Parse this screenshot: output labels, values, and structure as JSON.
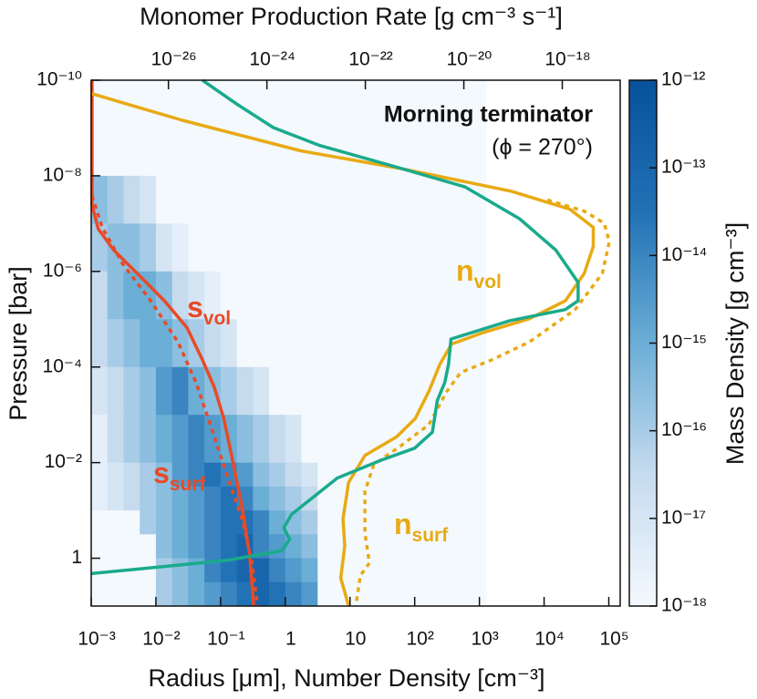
{
  "chart_data": {
    "type": "profile",
    "x_label": "Radius [μm], Number Density [cm⁻³]",
    "y_label": "Pressure [bar]",
    "x2_label": "Monomer Production Rate [g cm⁻³ s⁻¹]",
    "x2_color": "#1aaa8c",
    "annotations": [
      "Morning terminator",
      "(ϕ = 270°)"
    ],
    "xscale": "log",
    "yscale": "log",
    "x2scale": "log",
    "y_inverted": true,
    "xlim": [
      0.001,
      150000
    ],
    "ylim": [
      1e-10,
      10
    ],
    "x2lim": [
      2.7e-28,
      1.5e-17
    ],
    "xticks": [
      {
        "value": 0.001,
        "label": "10⁻³"
      },
      {
        "value": 0.01,
        "label": "10⁻²"
      },
      {
        "value": 0.1,
        "label": "10⁻¹"
      },
      1,
      10,
      {
        "value": 100,
        "label": "10²"
      },
      {
        "value": 1000,
        "label": "10³"
      },
      {
        "value": 10000,
        "label": "10⁴"
      },
      {
        "value": 100000,
        "label": "10⁵"
      }
    ],
    "yticks": [
      {
        "value": 1e-10,
        "label": "10⁻¹⁰"
      },
      {
        "value": 1e-08,
        "label": "10⁻⁸"
      },
      {
        "value": 1e-06,
        "label": "10⁻⁶"
      },
      {
        "value": 0.0001,
        "label": "10⁻⁴"
      },
      {
        "value": 0.01,
        "label": "10⁻²"
      },
      1
    ],
    "x2ticks": [
      {
        "value": 1e-26,
        "label": "10⁻²⁶"
      },
      {
        "value": 1e-24,
        "label": "10⁻²⁴"
      },
      {
        "value": 1e-22,
        "label": "10⁻²²"
      },
      {
        "value": 1e-20,
        "label": "10⁻²⁰"
      },
      {
        "value": 1e-18,
        "label": "10⁻¹⁸"
      }
    ],
    "colorbar": {
      "label": "Mass Density [g cm⁻³]",
      "lim": [
        1e-18,
        1e-12
      ],
      "ticks": [
        {
          "value": 1e-18,
          "label": "10⁻¹⁸"
        },
        {
          "value": 1e-17,
          "label": "10⁻¹⁷"
        },
        {
          "value": 1e-16,
          "label": "10⁻¹⁶"
        },
        {
          "value": 1e-15,
          "label": "10⁻¹⁵"
        },
        {
          "value": 1e-14,
          "label": "10⁻¹⁴"
        },
        {
          "value": 1e-13,
          "label": "10⁻¹³"
        },
        {
          "value": 1e-12,
          "label": "10⁻¹²"
        }
      ],
      "colors": [
        "#f4f9fe",
        "#c6dbef",
        "#6baed6",
        "#2171b5",
        "#08519c"
      ]
    },
    "heatmap": {
      "x_edges": [
        0.001,
        0.00178,
        0.00316,
        0.00562,
        0.01,
        0.0178,
        0.0316,
        0.0562,
        0.1,
        0.178,
        0.316,
        0.562,
        1,
        1.78,
        3.16,
        1260
      ],
      "y_edges": [
        1e-10,
        1e-08,
        1e-07,
        1e-06,
        1e-05,
        0.0001,
        0.001,
        0.01,
        0.0316,
        0.1,
        0.316,
        1,
        3.16,
        10
      ],
      "values": [
        [
          1e-18,
          1e-18,
          1e-18,
          1e-18,
          1e-18,
          1e-18,
          1e-18,
          1e-18,
          1e-18,
          1e-18,
          1e-18,
          1e-18,
          1e-18,
          1e-18,
          1e-18
        ],
        [
          3e-16,
          1e-16,
          3e-17,
          1e-17,
          1e-18,
          1e-18,
          1e-18,
          1e-18,
          1e-18,
          1e-18,
          1e-18,
          1e-18,
          1e-18,
          1e-18,
          1e-18
        ],
        [
          1e-16,
          3e-16,
          3e-16,
          1e-16,
          1e-17,
          3e-18,
          1e-18,
          1e-18,
          1e-18,
          1e-18,
          1e-18,
          1e-18,
          1e-18,
          1e-18,
          1e-18
        ],
        [
          3e-17,
          3e-16,
          1e-15,
          1e-15,
          3e-16,
          3e-17,
          1e-17,
          3e-18,
          1e-18,
          1e-18,
          1e-18,
          1e-18,
          1e-18,
          1e-18,
          1e-18
        ],
        [
          3e-17,
          1e-16,
          3e-16,
          1e-15,
          1e-15,
          3e-16,
          1e-16,
          3e-17,
          1e-17,
          1e-18,
          1e-18,
          1e-18,
          1e-18,
          1e-18,
          1e-18
        ],
        [
          1e-17,
          3e-17,
          1e-16,
          3e-16,
          3e-15,
          1e-14,
          1e-15,
          3e-16,
          1e-16,
          3e-17,
          1e-17,
          1e-18,
          1e-18,
          1e-18,
          1e-18
        ],
        [
          3e-18,
          3e-17,
          1e-16,
          3e-16,
          1e-15,
          3e-15,
          1e-14,
          3e-15,
          1e-15,
          3e-16,
          1e-16,
          3e-17,
          1e-17,
          1e-18,
          1e-18
        ],
        [
          3e-18,
          1e-17,
          3e-17,
          1e-16,
          3e-16,
          3e-15,
          1e-14,
          3e-14,
          1e-14,
          3e-15,
          3e-16,
          1e-16,
          3e-17,
          1e-17,
          1e-18
        ],
        [
          3e-18,
          1e-17,
          3e-17,
          1e-16,
          3e-16,
          1e-15,
          3e-15,
          1e-14,
          3e-14,
          1e-14,
          1e-15,
          3e-16,
          1e-16,
          3e-17,
          1e-18
        ],
        [
          1e-18,
          1e-18,
          1e-18,
          1e-16,
          3e-16,
          1e-15,
          3e-15,
          1e-14,
          3e-14,
          3e-14,
          1e-14,
          1e-15,
          3e-16,
          1e-16,
          1e-18
        ],
        [
          1e-18,
          1e-18,
          1e-18,
          1e-18,
          3e-16,
          1e-15,
          3e-15,
          1e-14,
          3e-14,
          1e-13,
          1e-14,
          3e-15,
          1e-15,
          3e-16,
          1e-18
        ],
        [
          1e-18,
          1e-18,
          1e-18,
          1e-18,
          1e-16,
          3e-16,
          1e-15,
          1e-14,
          3e-14,
          1e-13,
          1e-13,
          1e-14,
          3e-15,
          1e-15,
          1e-18
        ],
        [
          1e-18,
          1e-18,
          1e-18,
          1e-18,
          1e-16,
          3e-16,
          1e-15,
          3e-15,
          1e-14,
          3e-14,
          1e-13,
          3e-14,
          1e-14,
          3e-15,
          1e-18
        ]
      ]
    },
    "series": [
      {
        "name": "s",
        "sub": "vol",
        "color": "#e84a27",
        "dash": false,
        "axis": "x",
        "x": [
          0.00103,
          0.00103,
          0.00129,
          0.00224,
          0.00513,
          0.0135,
          0.0302,
          0.0525,
          0.0794,
          0.112,
          0.158,
          0.219,
          0.282,
          0.324
        ],
        "y": [
          1e-10,
          4.1e-08,
          1.3e-07,
          3.6e-07,
          1.1e-06,
          4.1e-06,
          1.5e-05,
          7.1e-05,
          0.00026,
          0.0012,
          0.011,
          0.098,
          0.87,
          9.8
        ]
      },
      {
        "name": "s",
        "sub": "surf",
        "color": "#e84a27",
        "dash": true,
        "axis": "x",
        "x": [
          0.00103,
          0.00148,
          0.00309,
          0.0083,
          0.0219,
          0.0417,
          0.0724,
          0.123,
          0.214,
          0.302,
          0.372
        ],
        "y": [
          2.6e-08,
          1.2e-07,
          7.1e-07,
          4.1e-06,
          3e-05,
          0.00021,
          0.0019,
          0.017,
          0.15,
          1.1,
          9.8
        ]
      },
      {
        "name": "n",
        "sub": "vol",
        "color": "#e8aa14",
        "dash": false,
        "axis": "x",
        "x": [
          0.001,
          0.0257,
          1.74,
          63,
          3090,
          25100,
          57500,
          57500,
          41700,
          21400,
          5890,
          1150,
          372,
          245,
          166,
          102,
          52.5,
          17,
          9.5,
          7.8,
          8.3,
          7.2,
          9.5
        ],
        "y": [
          1.9e-10,
          6.9e-10,
          3e-09,
          7.1e-09,
          2.1e-08,
          5e-08,
          1.2e-07,
          3e-07,
          1.1e-06,
          4.1e-06,
          9.8e-06,
          1.9e-05,
          3.3e-05,
          8.7e-05,
          0.00032,
          0.0012,
          0.0029,
          0.0071,
          0.026,
          0.15,
          0.56,
          2.6,
          9.8
        ]
      },
      {
        "name": "n",
        "sub": "surf",
        "color": "#e8aa14",
        "dash": true,
        "axis": "x",
        "x": [
          11200,
          41700,
          85100,
          102000,
          79400,
          30200,
          5890,
          1620,
          513,
          316,
          166,
          63,
          23.4,
          17,
          17,
          20,
          14.5,
          12.3
        ],
        "y": [
          3.2e-08,
          5.5e-08,
          9.8e-08,
          2.4e-07,
          1.1e-06,
          6.3e-06,
          3e-05,
          6.9e-05,
          0.00013,
          0.00032,
          0.0016,
          0.0043,
          0.011,
          0.04,
          0.3,
          1.26,
          2.3,
          9.8
        ]
      },
      {
        "color": "#1aaa8c",
        "dash": false,
        "axis": "x2",
        "x": [
          4.9e-26,
          2.5e-25,
          1.35e-24,
          1.15e-23,
          3.5e-22,
          1.05e-20,
          1.35e-19,
          7.4e-19,
          2.1e-18,
          2.1e-18,
          1.15e-18,
          8.7e-20,
          5.5e-21,
          4.9e-21,
          4.1e-21,
          2.9e-21,
          2.3e-21,
          1e-21,
          2.2e-22,
          2.7e-23,
          3.2e-24,
          2.2e-24,
          2.9e-24,
          2e-24,
          1.6e-25,
          2.2e-27,
          2.7e-28
        ],
        "y": [
          1e-10,
          3.2e-10,
          9.8e-10,
          2.3e-09,
          6.2e-09,
          1.7e-08,
          7.9e-08,
          3.6e-07,
          1.7e-06,
          4.1e-06,
          6.3e-06,
          1.07e-05,
          2.6e-05,
          8.7e-05,
          0.00021,
          0.0005,
          0.0023,
          0.005,
          0.0087,
          0.021,
          0.12,
          0.23,
          0.4,
          0.7,
          1.1,
          1.7,
          2.1
        ]
      }
    ]
  }
}
